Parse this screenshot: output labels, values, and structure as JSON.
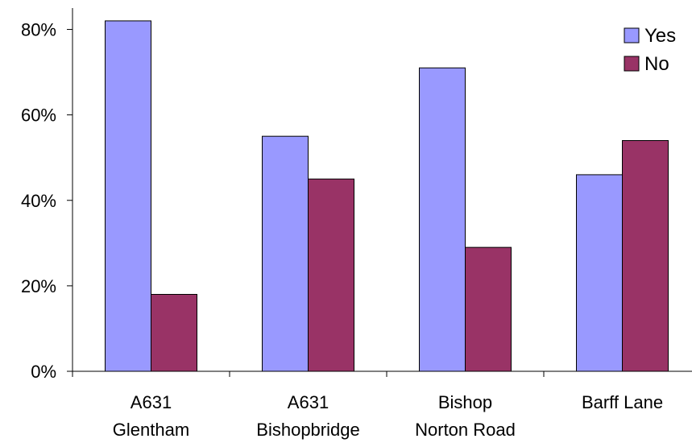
{
  "chart_data": {
    "type": "bar",
    "categories": [
      [
        "A631",
        "Glentham"
      ],
      [
        "A631",
        "Bishopbridge"
      ],
      [
        "Bishop",
        "Norton Road"
      ],
      [
        "Barff Lane"
      ]
    ],
    "series": [
      {
        "name": "Yes",
        "values": [
          82,
          55,
          71,
          46
        ],
        "color": "#9999FF"
      },
      {
        "name": "No",
        "values": [
          18,
          45,
          29,
          54
        ],
        "color": "#993366"
      }
    ],
    "y_ticks": [
      "0%",
      "20%",
      "40%",
      "60%",
      "80%"
    ],
    "y_tick_values": [
      0,
      20,
      40,
      60,
      80
    ],
    "ylim": [
      0,
      85
    ],
    "legend_position": "top-right",
    "grid": false,
    "title": "",
    "xlabel": "",
    "ylabel": ""
  }
}
